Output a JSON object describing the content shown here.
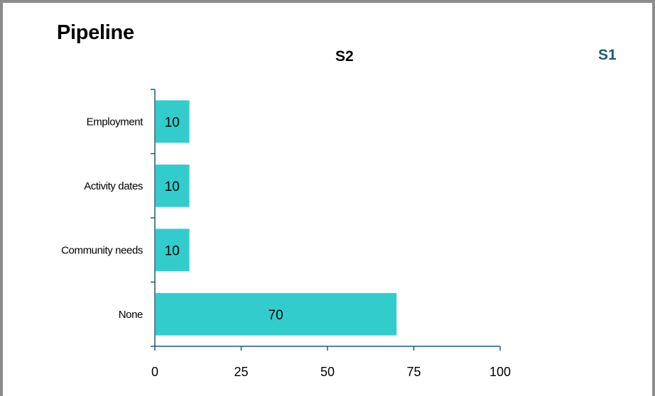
{
  "slide": {
    "title": "Pipeline",
    "corner_label": "S1",
    "corner_label_color": "#1d5a73"
  },
  "chart_data": {
    "type": "bar",
    "orientation": "horizontal",
    "title": "S2",
    "categories": [
      "Employment",
      "Activity dates",
      "Community needs",
      "None"
    ],
    "values": [
      10,
      10,
      10,
      70
    ],
    "data_labels": [
      "10",
      "10",
      "10",
      "70"
    ],
    "xlim": [
      0,
      100
    ],
    "x_ticks": [
      0,
      25,
      50,
      75,
      100
    ],
    "x_tick_labels": [
      "0",
      "25",
      "50",
      "75",
      "100"
    ],
    "xlabel": "",
    "ylabel": "",
    "grid": false,
    "legend": "none",
    "bar_color": "#33cccc",
    "axis_color": "#1d5a73"
  }
}
